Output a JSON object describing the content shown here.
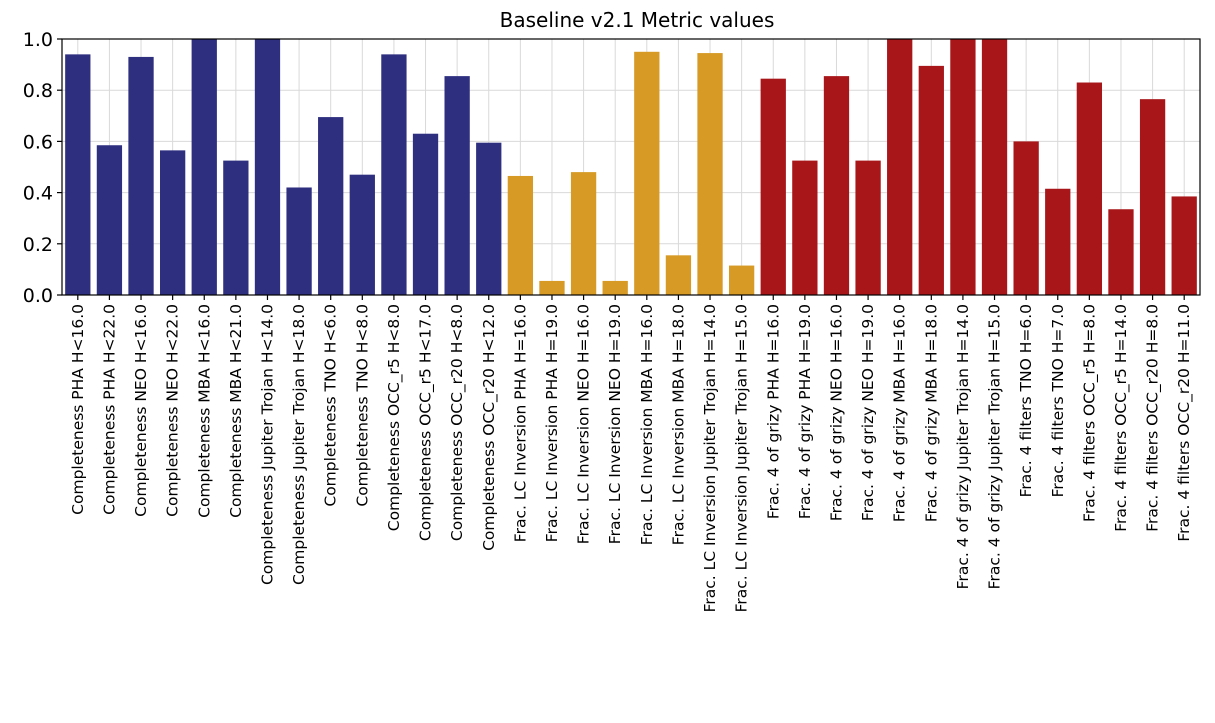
{
  "chart_data": {
    "type": "bar",
    "title": "Baseline v2.1 Metric values",
    "xlabel": "",
    "ylabel": "",
    "ylim": [
      0,
      1.0
    ],
    "yticks": [
      "0.0",
      "0.2",
      "0.4",
      "0.6",
      "0.8",
      "1.0"
    ],
    "grid": true,
    "group_colors": {
      "completeness": "#2f2f80",
      "lc_inversion": "#d69a25",
      "colors": "#a8161a"
    },
    "categories": [
      "Completeness PHA H<16.0",
      "Completeness PHA H<22.0",
      "Completeness NEO H<16.0",
      "Completeness NEO H<22.0",
      "Completeness MBA H<16.0",
      "Completeness MBA H<21.0",
      "Completeness Jupiter Trojan H<14.0",
      "Completeness Jupiter Trojan H<18.0",
      "Completeness TNO H<6.0",
      "Completeness TNO H<8.0",
      "Completeness OCC_r5 H<8.0",
      "Completeness OCC_r5 H<17.0",
      "Completeness OCC_r20 H<8.0",
      "Completeness OCC_r20 H<12.0",
      "Frac. LC Inversion PHA H=16.0",
      "Frac. LC Inversion PHA H=19.0",
      "Frac. LC Inversion NEO H=16.0",
      "Frac. LC Inversion NEO H=19.0",
      "Frac. LC Inversion MBA H=16.0",
      "Frac. LC Inversion MBA H=18.0",
      "Frac. LC Inversion Jupiter Trojan H=14.0",
      "Frac. LC Inversion Jupiter Trojan H=15.0",
      "Frac. 4 of grizy PHA H=16.0",
      "Frac. 4 of grizy PHA H=19.0",
      "Frac. 4 of grizy NEO H=16.0",
      "Frac. 4 of grizy NEO H=19.0",
      "Frac. 4 of grizy MBA H=16.0",
      "Frac. 4 of grizy MBA H=18.0",
      "Frac. 4 of grizy Jupiter Trojan H=14.0",
      "Frac. 4 of grizy Jupiter Trojan H=15.0",
      "Frac. 4 filters TNO H=6.0",
      "Frac. 4 filters TNO H=7.0",
      "Frac. 4 filters OCC_r5 H=8.0",
      "Frac. 4 filters OCC_r5 H=14.0",
      "Frac. 4 filters OCC_r20 H=8.0",
      "Frac. 4 filters OCC_r20 H=11.0"
    ],
    "values": [
      0.94,
      0.585,
      0.93,
      0.565,
      1.0,
      0.525,
      1.0,
      0.42,
      0.695,
      0.47,
      0.94,
      0.63,
      0.855,
      0.595,
      0.465,
      0.055,
      0.48,
      0.055,
      0.95,
      0.155,
      0.945,
      0.115,
      0.845,
      0.525,
      0.855,
      0.525,
      1.0,
      0.895,
      1.0,
      1.0,
      0.6,
      0.415,
      0.83,
      0.335,
      0.765,
      0.385
    ],
    "groups": [
      "completeness",
      "completeness",
      "completeness",
      "completeness",
      "completeness",
      "completeness",
      "completeness",
      "completeness",
      "completeness",
      "completeness",
      "completeness",
      "completeness",
      "completeness",
      "completeness",
      "lc_inversion",
      "lc_inversion",
      "lc_inversion",
      "lc_inversion",
      "lc_inversion",
      "lc_inversion",
      "lc_inversion",
      "lc_inversion",
      "colors",
      "colors",
      "colors",
      "colors",
      "colors",
      "colors",
      "colors",
      "colors",
      "colors",
      "colors",
      "colors",
      "colors",
      "colors",
      "colors"
    ]
  }
}
